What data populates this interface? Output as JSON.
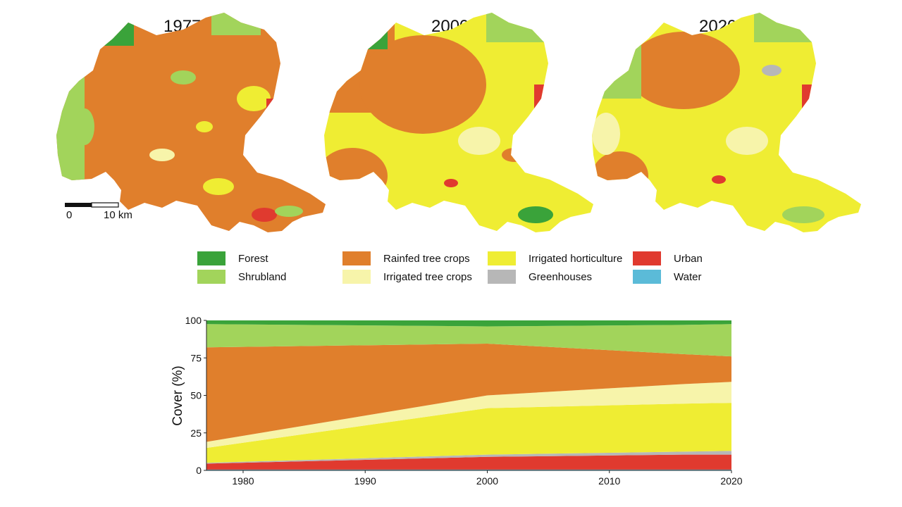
{
  "maps": [
    {
      "year": "1977"
    },
    {
      "year": "2000"
    },
    {
      "year": "2020"
    }
  ],
  "scalebar": {
    "left_label": "0",
    "right_label": "10 km"
  },
  "colors": {
    "Forest": "#3aa33a",
    "Shrubland": "#a2d45b",
    "Rainfed tree crops": "#e07f2c",
    "Irrigated tree crops": "#f7f4aa",
    "Irrigated horticulture": "#efed33",
    "Greenhouses": "#b7b7b7",
    "Urban": "#e03a2f",
    "Water": "#5bbbd8"
  },
  "legend": [
    {
      "label": "Forest",
      "color": "#3aa33a"
    },
    {
      "label": "Shrubland",
      "color": "#a2d45b"
    },
    {
      "label": "Rainfed tree crops",
      "color": "#e07f2c"
    },
    {
      "label": "Irrigated tree crops",
      "color": "#f7f4aa"
    },
    {
      "label": "Irrigated horticulture",
      "color": "#efed33"
    },
    {
      "label": "Greenhouses",
      "color": "#b7b7b7"
    },
    {
      "label": "Urban",
      "color": "#e03a2f"
    },
    {
      "label": "Water",
      "color": "#5bbbd8"
    }
  ],
  "chart_data": {
    "type": "area",
    "stacked": true,
    "x": [
      1977,
      2000,
      2016,
      2020
    ],
    "series": [
      {
        "name": "Water",
        "values": [
          0.5,
          0.5,
          0.5,
          0.5
        ]
      },
      {
        "name": "Urban",
        "values": [
          4.0,
          8.5,
          10.0,
          10.0
        ]
      },
      {
        "name": "Greenhouses",
        "values": [
          0.5,
          1.5,
          2.0,
          2.5
        ]
      },
      {
        "name": "Irrigated horticulture",
        "values": [
          10.0,
          31.0,
          32.0,
          32.0
        ]
      },
      {
        "name": "Irrigated tree crops",
        "values": [
          4.0,
          8.5,
          13.0,
          14.0
        ]
      },
      {
        "name": "Rainfed tree crops",
        "values": [
          63.0,
          34.5,
          20.0,
          17.0
        ]
      },
      {
        "name": "Shrubland",
        "values": [
          15.5,
          11.5,
          19.5,
          21.5
        ]
      },
      {
        "name": "Forest",
        "values": [
          2.5,
          4.0,
          3.0,
          2.5
        ]
      }
    ],
    "xticks": [
      1980,
      1990,
      2000,
      2010,
      2020
    ],
    "yticks": [
      0,
      25,
      50,
      75,
      100
    ],
    "xlim": [
      1977,
      2020
    ],
    "ylim": [
      0,
      100
    ],
    "xlabel": "",
    "ylabel": "Cover (%)",
    "grid": false
  }
}
